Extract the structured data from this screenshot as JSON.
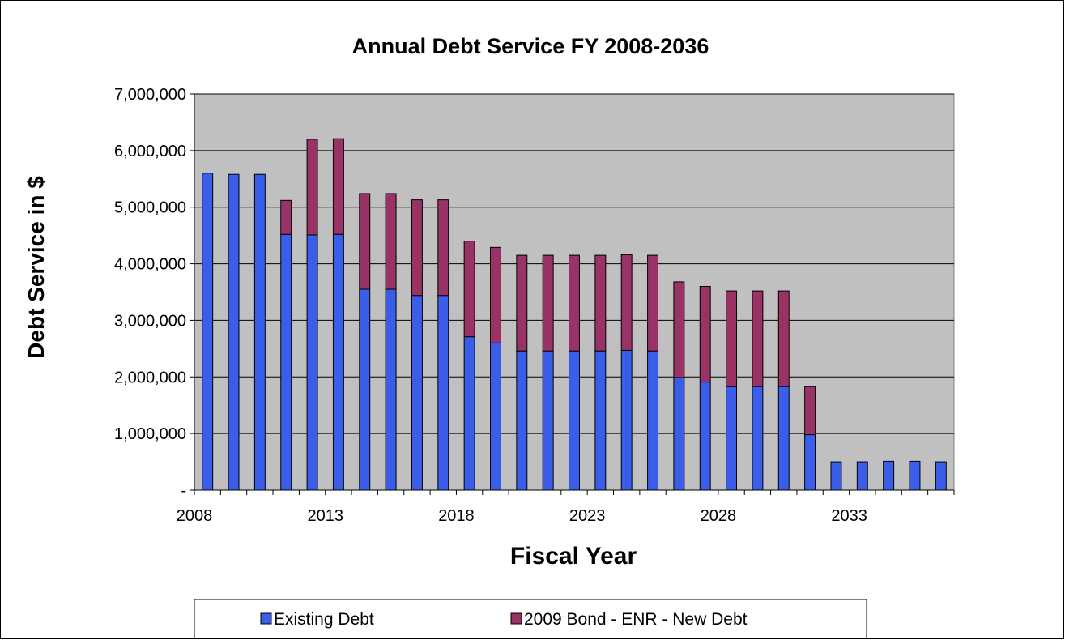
{
  "chart_data": {
    "type": "bar",
    "stacked": true,
    "title": "Annual Debt Service FY 2008-2036",
    "xlabel": "Fiscal Year",
    "ylabel": "Debt Service in $",
    "ylim": [
      0,
      7000000
    ],
    "y_ticks": [
      {
        "value": 0,
        "label": "-"
      },
      {
        "value": 1000000,
        "label": "1,000,000"
      },
      {
        "value": 2000000,
        "label": "2,000,000"
      },
      {
        "value": 3000000,
        "label": "3,000,000"
      },
      {
        "value": 4000000,
        "label": "4,000,000"
      },
      {
        "value": 5000000,
        "label": "5,000,000"
      },
      {
        "value": 6000000,
        "label": "6,000,000"
      },
      {
        "value": 7000000,
        "label": "7,000,000"
      }
    ],
    "x_tick_labels": [
      "2008",
      "2013",
      "2018",
      "2023",
      "2028",
      "2033"
    ],
    "categories": [
      2008,
      2009,
      2010,
      2011,
      2012,
      2013,
      2014,
      2015,
      2016,
      2017,
      2018,
      2019,
      2020,
      2021,
      2022,
      2023,
      2024,
      2025,
      2026,
      2027,
      2028,
      2029,
      2030,
      2031,
      2032,
      2033,
      2034,
      2035,
      2036
    ],
    "grid": true,
    "legend_position": "bottom",
    "series": [
      {
        "name": "Existing Debt",
        "color": "#3A5EEA",
        "values": [
          5600000,
          5580000,
          5580000,
          4520000,
          4510000,
          4520000,
          3550000,
          3550000,
          3440000,
          3440000,
          2710000,
          2600000,
          2460000,
          2460000,
          2460000,
          2460000,
          2470000,
          2460000,
          1990000,
          1910000,
          1830000,
          1830000,
          1830000,
          980000,
          500000,
          500000,
          510000,
          510000,
          500000
        ]
      },
      {
        "name": "2009 Bond - ENR - New Debt",
        "color": "#993366",
        "values": [
          0,
          0,
          0,
          600000,
          1690000,
          1690000,
          1690000,
          1690000,
          1690000,
          1690000,
          1690000,
          1690000,
          1690000,
          1690000,
          1690000,
          1690000,
          1690000,
          1690000,
          1690000,
          1690000,
          1690000,
          1690000,
          1690000,
          850000,
          0,
          0,
          0,
          0,
          0
        ]
      }
    ],
    "colors": {
      "plot_background": "#C0C0C0",
      "gridline": "#000000",
      "frame": "#000000"
    }
  }
}
